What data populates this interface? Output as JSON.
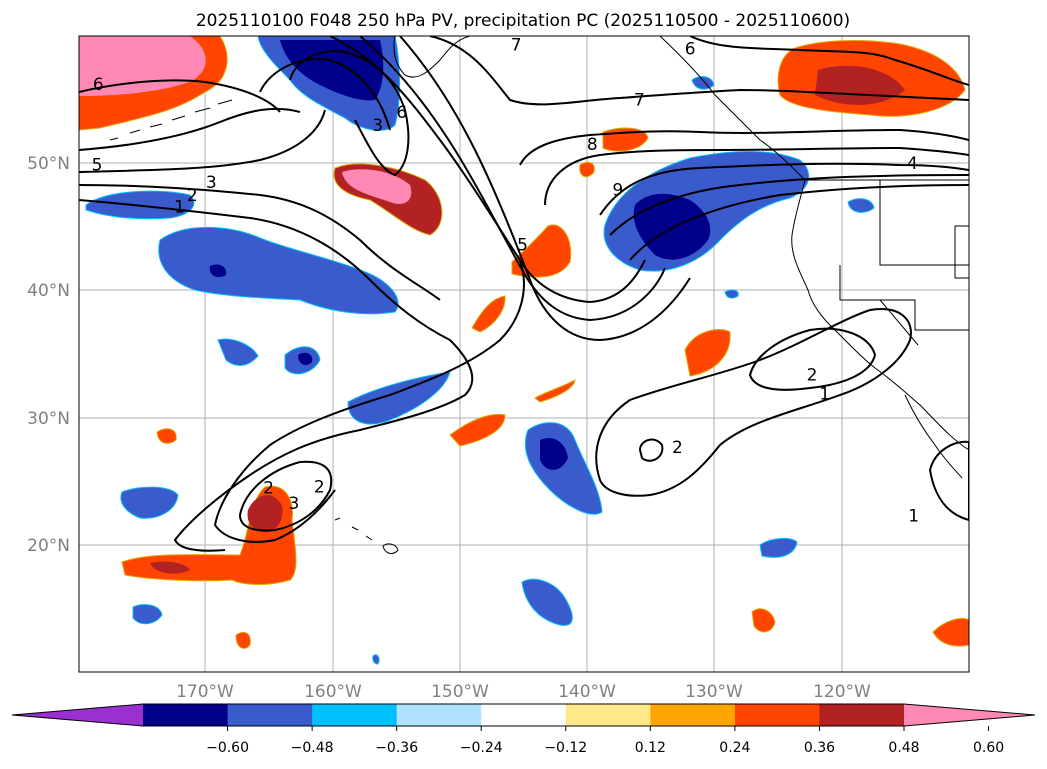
{
  "chart_data": {
    "type": "contour-map",
    "title": "2025110100 F048 250 hPa PV, precipitation PC (2025110500 - 2025110600)",
    "lon_ticks": [
      "170°W",
      "160°W",
      "150°W",
      "140°W",
      "130°W",
      "120°W"
    ],
    "lat_ticks": [
      "50°N",
      "40°N",
      "30°N",
      "20°N"
    ],
    "grid": true,
    "colorbar": {
      "levels": [
        "−0.60",
        "−0.48",
        "−0.36",
        "−0.24",
        "−0.12",
        "0.12",
        "0.24",
        "0.36",
        "0.48",
        "0.60"
      ],
      "colors": [
        "#9b30d0",
        "#00008b",
        "#3a5bcc",
        "#00bfff",
        "#b0e2ff",
        "#ffffff",
        "#ffe98a",
        "#ffa500",
        "#ff4500",
        "#b22222",
        "#ff88b4"
      ],
      "extend": "both"
    },
    "contour_labels": [
      {
        "label": "6",
        "lon": -178.4,
        "lat": 56.2
      },
      {
        "label": "5",
        "lon": -178.5,
        "lat": 49.9
      },
      {
        "label": "3",
        "lon": -169.5,
        "lat": 48.5
      },
      {
        "label": "2",
        "lon": -171.0,
        "lat": 47.5
      },
      {
        "label": "1",
        "lon": -172.0,
        "lat": 46.6
      },
      {
        "label": "6",
        "lon": -154.5,
        "lat": 54.0
      },
      {
        "label": "3",
        "lon": -156.4,
        "lat": 53.0
      },
      {
        "label": "7",
        "lon": -145.5,
        "lat": 59.3
      },
      {
        "label": "6",
        "lon": -131.8,
        "lat": 59.0
      },
      {
        "label": "7",
        "lon": -135.8,
        "lat": 55.0
      },
      {
        "label": "8",
        "lon": -139.5,
        "lat": 51.5
      },
      {
        "label": "9",
        "lon": -137.5,
        "lat": 47.9
      },
      {
        "label": "5",
        "lon": -145.0,
        "lat": 43.6
      },
      {
        "label": "4",
        "lon": -114.3,
        "lat": 50.0
      },
      {
        "label": "2",
        "lon": -165.0,
        "lat": 24.5
      },
      {
        "label": "3",
        "lon": -163.0,
        "lat": 23.3
      },
      {
        "label": "2",
        "lon": -161.0,
        "lat": 24.6
      },
      {
        "label": "2",
        "lon": -132.8,
        "lat": 27.7
      },
      {
        "label": "2",
        "lon": -122.2,
        "lat": 33.4
      },
      {
        "label": "1",
        "lon": -121.2,
        "lat": 31.9
      },
      {
        "label": "1",
        "lon": -114.2,
        "lat": 22.3
      }
    ]
  }
}
